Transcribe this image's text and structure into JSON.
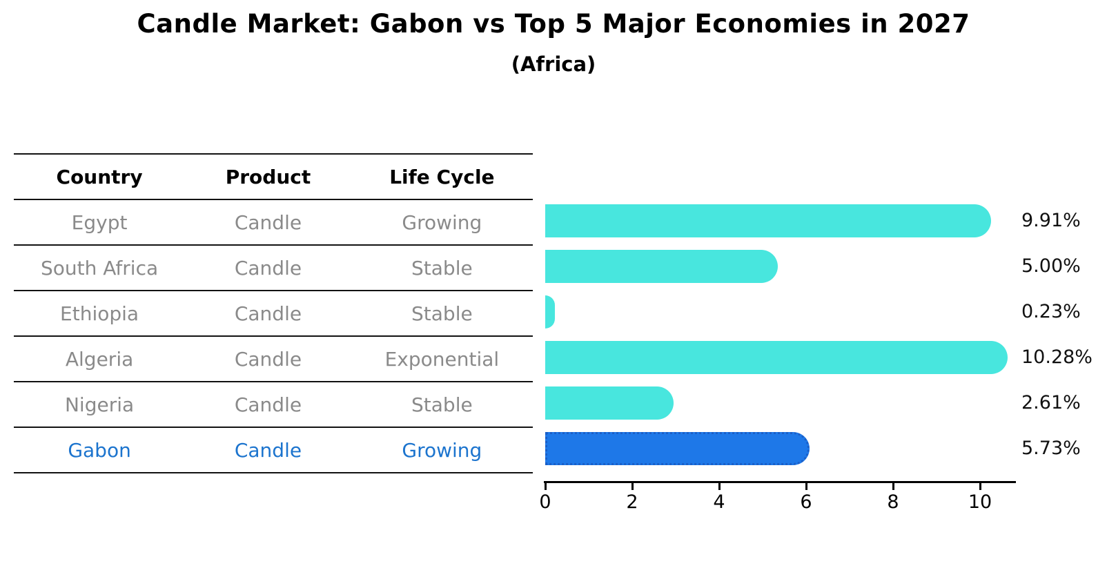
{
  "title": "Candle Market: Gabon vs Top 5 Major Economies in 2027",
  "subtitle": "(Africa)",
  "colors": {
    "bar_default": "#48e6de",
    "bar_highlight": "#1e78e8",
    "bar_highlight_border": "#1a5fc8",
    "highlight_text": "#1c74ce",
    "table_text": "#8a8a8a",
    "header_text": "#000000",
    "axis": "#000000"
  },
  "table": {
    "headers": [
      "Country",
      "Product",
      "Life Cycle"
    ],
    "rows": [
      {
        "country": "Egypt",
        "product": "Candle",
        "life_cycle": "Growing",
        "highlight": false
      },
      {
        "country": "South Africa",
        "product": "Candle",
        "life_cycle": "Stable",
        "highlight": false
      },
      {
        "country": "Ethiopia",
        "product": "Candle",
        "life_cycle": "Stable",
        "highlight": false
      },
      {
        "country": "Algeria",
        "product": "Candle",
        "life_cycle": "Exponential",
        "highlight": false
      },
      {
        "country": "Nigeria",
        "product": "Candle",
        "life_cycle": "Stable",
        "highlight": false
      },
      {
        "country": "Gabon",
        "product": "Candle",
        "life_cycle": "Growing",
        "highlight": true
      }
    ]
  },
  "chart_data": {
    "type": "bar",
    "orientation": "horizontal",
    "title": "Candle Market: Gabon vs Top 5 Major Economies in 2027",
    "subtitle": "(Africa)",
    "categories": [
      "Egypt",
      "South Africa",
      "Ethiopia",
      "Algeria",
      "Nigeria",
      "Gabon"
    ],
    "values": [
      9.91,
      5.0,
      0.23,
      10.28,
      2.61,
      5.73
    ],
    "value_labels": [
      "9.91%",
      "5.00%",
      "0.23%",
      "10.28%",
      "2.61%",
      "5.73%"
    ],
    "highlight_category": "Gabon",
    "xlabel": "",
    "ylabel": "",
    "xlim": [
      0,
      10.8
    ],
    "xticks": [
      0,
      2,
      4,
      6,
      8,
      10
    ],
    "grid": false,
    "legend": false
  }
}
